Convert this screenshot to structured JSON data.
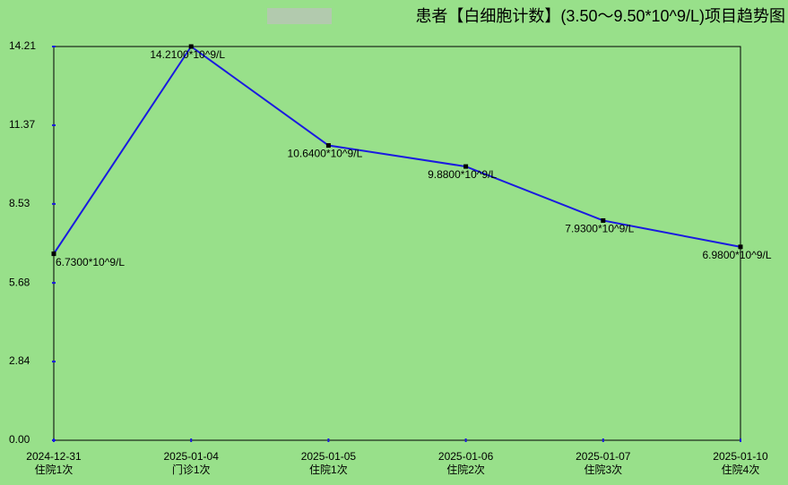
{
  "chart_data": {
    "type": "line",
    "title": "患者【白细胞计数】(3.50～9.50*10^9/L)项目趋势图",
    "categories": [
      "2024-12-31",
      "2025-01-04",
      "2025-01-05",
      "2025-01-06",
      "2025-01-07",
      "2025-01-10"
    ],
    "visit_labels": [
      "住院1次",
      "门诊1次",
      "住院1次",
      "住院2次",
      "住院3次",
      "住院4次"
    ],
    "values": [
      6.73,
      14.21,
      10.64,
      9.88,
      7.93,
      6.98
    ],
    "value_labels": [
      "6.7300*10^9/L",
      "14.2100*10^9/L",
      "10.6400*10^9/L",
      "9.8800*10^9/L",
      "7.9300*10^9/L",
      "6.9800*10^9/L"
    ],
    "color": "#1a1ae0",
    "ylim": [
      0,
      14.21
    ],
    "yticks": [
      {
        "value": 0,
        "label": "0.00"
      },
      2.84,
      5.68,
      8.53,
      11.37,
      14.21
    ]
  }
}
